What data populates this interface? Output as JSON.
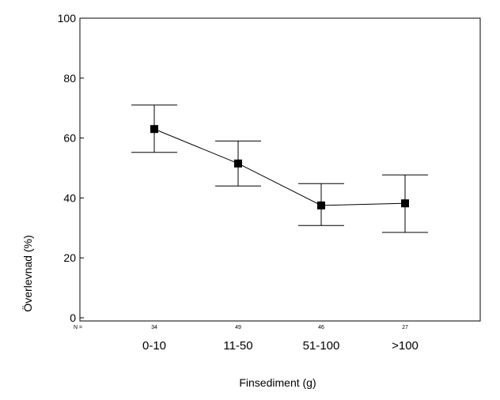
{
  "chart_data": {
    "type": "line",
    "title": "",
    "xlabel": "Finsediment (g)",
    "ylabel": "Överlevnad (%)",
    "ylim": [
      0,
      100
    ],
    "yticks": [
      0,
      20,
      40,
      60,
      80,
      100
    ],
    "categories": [
      "0-10",
      "11-50",
      "51-100",
      ">100"
    ],
    "n_prefix": "N =",
    "n_values": [
      "34",
      "49",
      "46",
      "27"
    ],
    "series": [
      {
        "values": [
          63,
          51.5,
          37.5,
          38.2
        ],
        "error_lower": [
          55.2,
          44,
          30.8,
          28.5
        ],
        "error_upper": [
          71,
          59,
          44.8,
          47.7
        ]
      }
    ],
    "grid": false,
    "legend": "none",
    "colors": {
      "marker": "#000000",
      "line": "#000000",
      "background": "#ffffff"
    }
  }
}
